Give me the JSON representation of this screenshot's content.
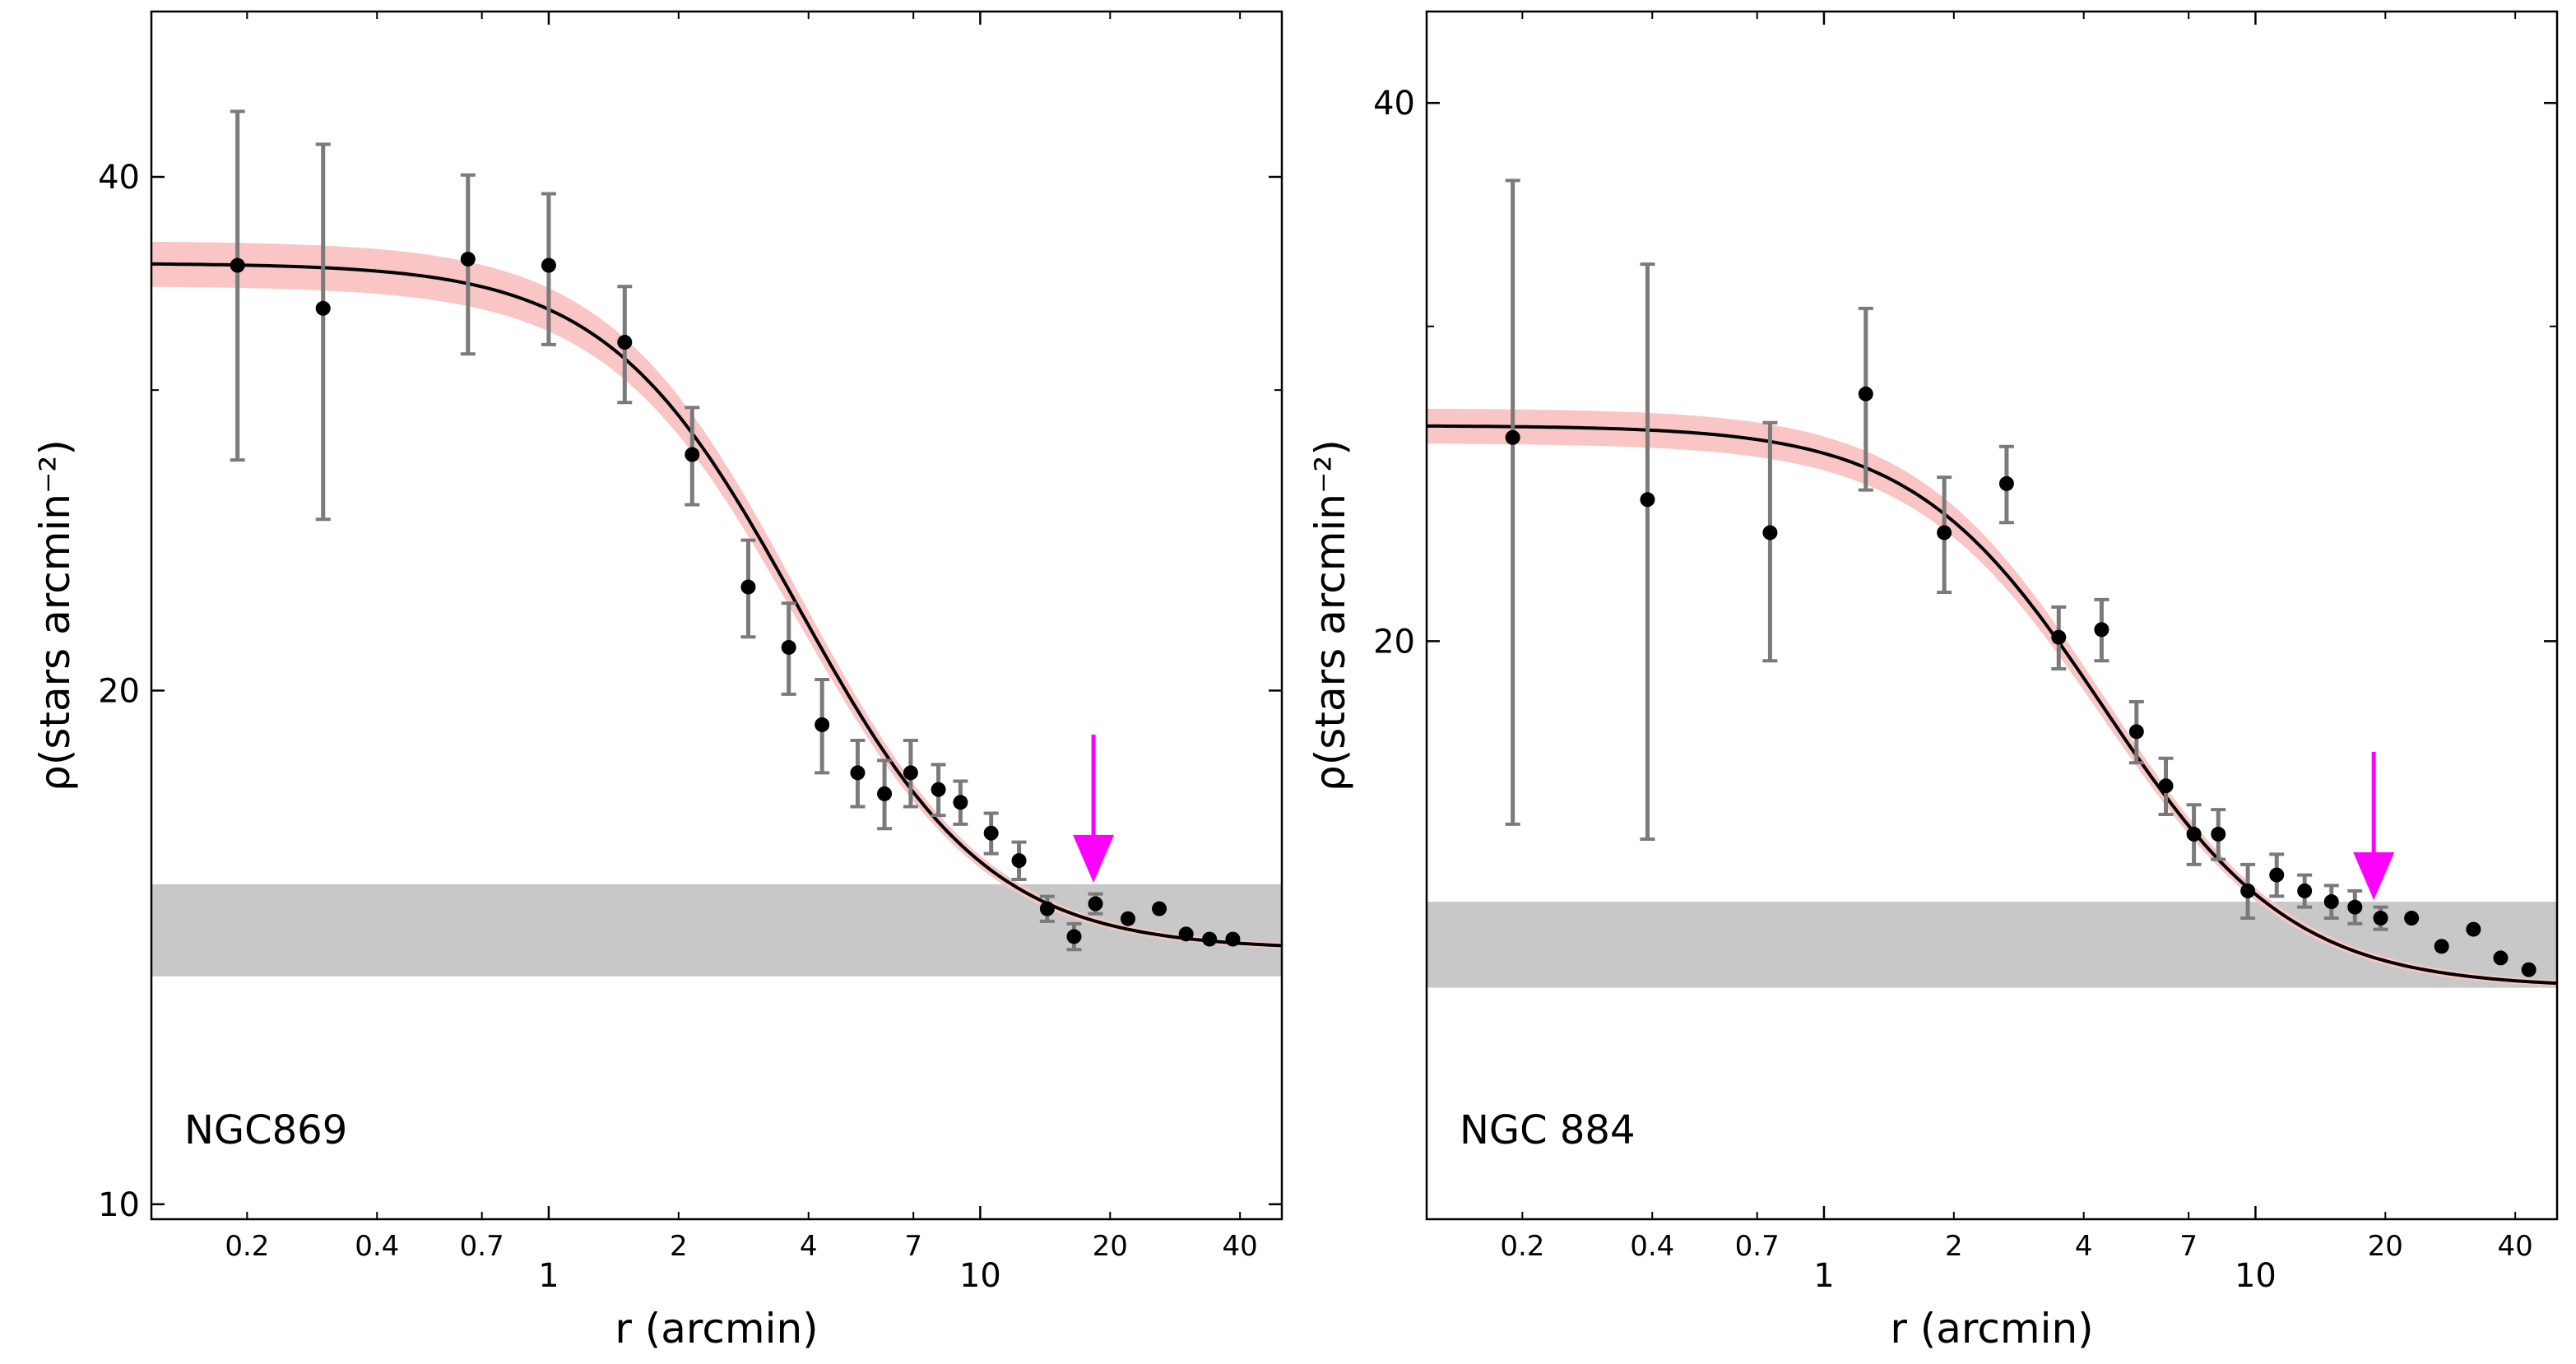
{
  "chart_data": [
    {
      "type": "scatter",
      "title": "",
      "xlabel": "r (arcmin)",
      "ylabel": "ρ(stars arcmin⁻²)",
      "xscale": "log",
      "yscale": "log",
      "xlim": [
        0.12,
        50
      ],
      "ylim": [
        9.8,
        50
      ],
      "x_major_ticks": [
        {
          "value": 1,
          "label": "1"
        },
        {
          "value": 10,
          "label": "10"
        }
      ],
      "x_minor_ticks": [
        {
          "value": 0.2,
          "label": "0.2"
        },
        {
          "value": 0.4,
          "label": "0.4"
        },
        {
          "value": 0.7,
          "label": "0.7"
        },
        {
          "value": 2,
          "label": "2"
        },
        {
          "value": 4,
          "label": "4"
        },
        {
          "value": 7,
          "label": "7"
        },
        {
          "value": 20,
          "label": "20"
        },
        {
          "value": 40,
          "label": "40"
        }
      ],
      "y_major_ticks": [
        {
          "value": 10,
          "label": "10"
        },
        {
          "value": 20,
          "label": "20"
        },
        {
          "value": 40,
          "label": "40"
        }
      ],
      "y_minor_ticks": [
        30
      ],
      "cluster_label": "NGC869",
      "points": {
        "r": [
          0.19,
          0.3,
          0.65,
          1.0,
          1.5,
          2.15,
          2.9,
          3.6,
          4.3,
          5.2,
          6.0,
          6.9,
          8.0,
          9.0,
          10.6,
          12.3,
          14.3,
          16.5,
          18.5,
          22.0,
          26.0,
          30.0,
          34.0,
          38.5
        ],
        "rho": [
          35.5,
          33.5,
          35.8,
          35.5,
          32.0,
          27.5,
          23.0,
          21.2,
          19.1,
          17.9,
          17.4,
          17.9,
          17.5,
          17.2,
          16.5,
          15.9,
          14.9,
          14.35,
          15.0,
          14.7,
          14.9,
          14.4,
          14.3,
          14.3
        ],
        "err": [
          8.2,
          8.3,
          4.3,
          3.6,
          2.5,
          1.8,
          1.5,
          1.3,
          1.2,
          0.8,
          0.8,
          0.8,
          0.6,
          0.5,
          0.45,
          0.4,
          0.25,
          0.25,
          0.2,
          0,
          0,
          0,
          0,
          0
        ]
      },
      "king_fit": {
        "f_bg": 14.1,
        "f_0": 21.5,
        "r_c": 3.0
      },
      "fit_band_fraction": 0.03,
      "background_band": [
        13.6,
        15.4
      ],
      "limiting_radius_arrow": 18.3,
      "colors": {
        "fit": "#000000",
        "fit_band": "#f9c5c5",
        "background": "#c8c8c8",
        "errorbar": "#7a7a7a",
        "arrow": "#ff00ff",
        "point": "#000000"
      }
    },
    {
      "type": "scatter",
      "title": "",
      "xlabel": "r (arcmin)",
      "ylabel": "ρ(stars arcmin⁻²)",
      "xscale": "log",
      "yscale": "log",
      "xlim": [
        0.12,
        50
      ],
      "ylim": [
        9.5,
        45
      ],
      "x_major_ticks": [
        {
          "value": 1,
          "label": "1"
        },
        {
          "value": 10,
          "label": "10"
        }
      ],
      "x_minor_ticks": [
        {
          "value": 0.2,
          "label": "0.2"
        },
        {
          "value": 0.4,
          "label": "0.4"
        },
        {
          "value": 0.7,
          "label": "0.7"
        },
        {
          "value": 2,
          "label": "2"
        },
        {
          "value": 4,
          "label": "4"
        },
        {
          "value": 7,
          "label": "7"
        },
        {
          "value": 20,
          "label": "20"
        },
        {
          "value": 40,
          "label": "40"
        }
      ],
      "y_major_ticks": [
        {
          "value": 20,
          "label": "20"
        },
        {
          "value": 40,
          "label": "40"
        }
      ],
      "y_minor_ticks": [
        30
      ],
      "cluster_label": "NGC 884",
      "points": {
        "r": [
          0.19,
          0.39,
          0.75,
          1.25,
          1.9,
          2.65,
          3.5,
          4.4,
          5.3,
          6.2,
          7.2,
          8.2,
          9.6,
          11.2,
          13.0,
          15.0,
          17.0,
          19.5,
          23.0,
          27.0,
          32.0,
          37.0,
          43.0
        ],
        "rho": [
          26.0,
          24.0,
          23.0,
          27.5,
          23.0,
          24.5,
          20.1,
          20.3,
          17.8,
          16.6,
          15.6,
          15.6,
          14.5,
          14.8,
          14.5,
          14.3,
          14.2,
          14.0,
          14.0,
          13.5,
          13.8,
          13.3,
          13.1
        ],
        "err": [
          10.2,
          8.5,
          3.5,
          3.2,
          1.7,
          1.2,
          0.8,
          0.8,
          0.7,
          0.6,
          0.6,
          0.5,
          0.5,
          0.4,
          0.3,
          0.3,
          0.3,
          0.2,
          0,
          0,
          0,
          0,
          0
        ]
      },
      "king_fit": {
        "f_bg": 12.8,
        "f_0": 13.6,
        "r_c": 3.7
      },
      "fit_band_fraction": 0.025,
      "background_band": [
        12.8,
        14.3
      ],
      "limiting_radius_arrow": 18.8,
      "colors": {
        "fit": "#000000",
        "fit_band": "#f9c5c5",
        "background": "#c8c8c8",
        "errorbar": "#7a7a7a",
        "arrow": "#ff00ff",
        "point": "#000000"
      }
    }
  ]
}
